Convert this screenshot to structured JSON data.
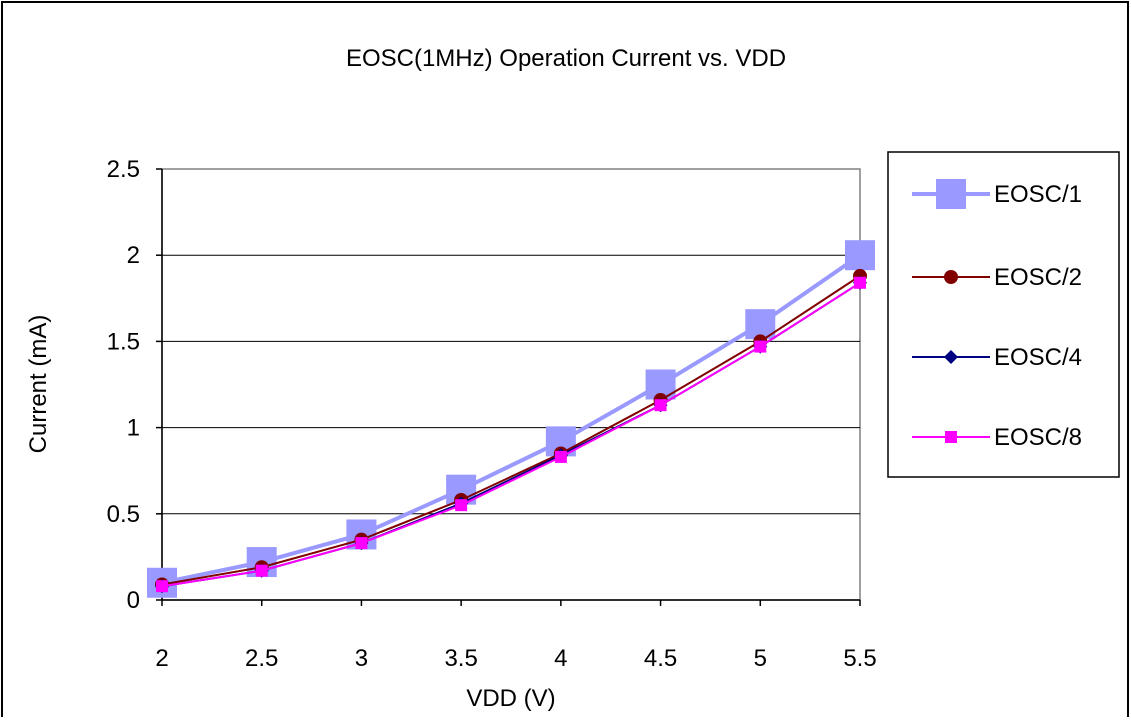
{
  "chart_data": {
    "type": "line",
    "title": "EOSC(1MHz) Operation Current vs. VDD",
    "xlabel": "VDD (V)",
    "ylabel": "Current (mA)",
    "x": [
      2,
      2.5,
      3,
      3.5,
      4,
      4.5,
      5,
      5.5
    ],
    "x_tick_labels": [
      "2",
      "2.5",
      "3",
      "3.5",
      "4",
      "4.5",
      "5",
      "5.5"
    ],
    "y_ticks": [
      0,
      0.5,
      1,
      1.5,
      2,
      2.5
    ],
    "y_tick_labels": [
      "0",
      "0.5",
      "1",
      "1.5",
      "2",
      "2.5"
    ],
    "ylim": [
      0,
      2.5
    ],
    "grid": "horizontal",
    "legend_position": "right",
    "series": [
      {
        "name": "EOSC/1",
        "color": "#9999ff",
        "marker": "square-large",
        "values": [
          0.1,
          0.22,
          0.38,
          0.64,
          0.92,
          1.25,
          1.6,
          2.0
        ]
      },
      {
        "name": "EOSC/2",
        "color": "#800000",
        "marker": "circle",
        "values": [
          0.09,
          0.19,
          0.35,
          0.58,
          0.85,
          1.16,
          1.5,
          1.88
        ]
      },
      {
        "name": "EOSC/4",
        "color": "#000080",
        "marker": "diamond",
        "values": [
          0.08,
          0.17,
          0.33,
          0.56,
          0.84,
          1.13,
          1.47,
          1.84
        ]
      },
      {
        "name": "EOSC/8",
        "color": "#ff00ff",
        "marker": "square",
        "values": [
          0.08,
          0.17,
          0.33,
          0.55,
          0.83,
          1.13,
          1.47,
          1.84
        ]
      }
    ]
  }
}
